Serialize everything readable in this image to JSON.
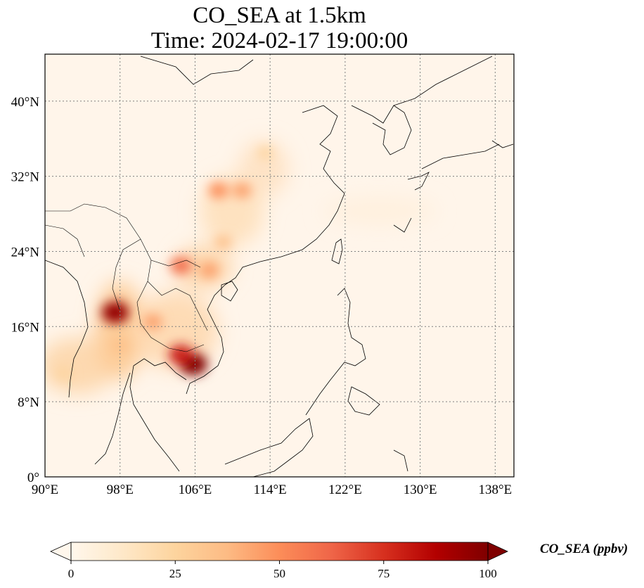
{
  "title": {
    "line1": "CO_SEA at 1.5km",
    "line2": "Time: 2024-02-17 19:00:00"
  },
  "map": {
    "projection": "PlateCarree",
    "lon_range": [
      90,
      140
    ],
    "lat_range": [
      0,
      45
    ],
    "gridlines": "dotted gray",
    "lon_ticks": [
      {
        "value": 90,
        "label": "90°E"
      },
      {
        "value": 98,
        "label": "98°E"
      },
      {
        "value": 106,
        "label": "106°E"
      },
      {
        "value": 114,
        "label": "114°E"
      },
      {
        "value": 122,
        "label": "122°E"
      },
      {
        "value": 130,
        "label": "130°E"
      },
      {
        "value": 138,
        "label": "138°E"
      }
    ],
    "lat_ticks": [
      {
        "value": 0,
        "label": "0°"
      },
      {
        "value": 8,
        "label": "8°N"
      },
      {
        "value": 16,
        "label": "16°N"
      },
      {
        "value": 24,
        "label": "24°N"
      },
      {
        "value": 32,
        "label": "32°N"
      },
      {
        "value": 40,
        "label": "40°N"
      }
    ],
    "field_hotspots": [
      {
        "lon": 105.8,
        "lat": 12.0,
        "value": 100
      },
      {
        "lon": 104.5,
        "lat": 13.0,
        "value": 80
      },
      {
        "lon": 97.5,
        "lat": 17.5,
        "value": 95
      },
      {
        "lon": 104.5,
        "lat": 22.5,
        "value": 60
      },
      {
        "lon": 107.5,
        "lat": 22.0,
        "value": 45
      },
      {
        "lon": 108.5,
        "lat": 30.5,
        "value": 50
      },
      {
        "lon": 111.0,
        "lat": 30.5,
        "value": 45
      },
      {
        "lon": 101.5,
        "lat": 16.5,
        "value": 45
      },
      {
        "lon": 109.0,
        "lat": 25.0,
        "value": 35
      },
      {
        "lon": 113.5,
        "lat": 34.5,
        "value": 25
      },
      {
        "lon": 92.0,
        "lat": 11.0,
        "value": 25
      },
      {
        "lon": 98.0,
        "lat": 14.0,
        "value": 35
      }
    ]
  },
  "colorbar": {
    "label": "CO_SEA (ppbv)",
    "colormap": "OrRd",
    "min": 0,
    "max": 100,
    "extend": "both",
    "ticks": [
      {
        "value": 0,
        "label": "0"
      },
      {
        "value": 25,
        "label": "25"
      },
      {
        "value": 50,
        "label": "50"
      },
      {
        "value": 75,
        "label": "75"
      },
      {
        "value": 100,
        "label": "100"
      }
    ],
    "colors": [
      "#fff7ec",
      "#fee8c8",
      "#fdd49e",
      "#fdbb84",
      "#fc8d59",
      "#ef6548",
      "#d7301f",
      "#b30000",
      "#7f0000"
    ]
  }
}
